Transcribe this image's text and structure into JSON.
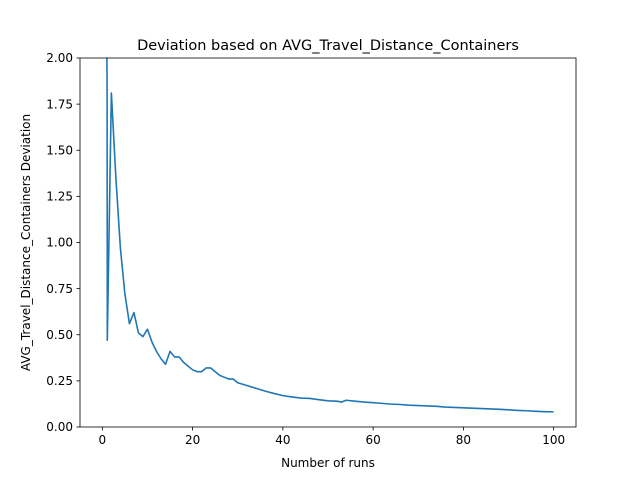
{
  "chart_data": {
    "type": "line",
    "title": "Deviation based on AVG_Travel_Distance_Containers",
    "xlabel": "Number of runs",
    "ylabel": "AVG_Travel_Distance_Containers Deviation",
    "xlim": [
      -4.95,
      104.95
    ],
    "ylim": [
      0,
      2.0
    ],
    "x_ticks": [
      0,
      20,
      40,
      60,
      80,
      100
    ],
    "x_tick_labels": [
      "0",
      "20",
      "40",
      "60",
      "80",
      "100"
    ],
    "y_ticks": [
      0,
      0.25,
      0.5,
      0.75,
      1.0,
      1.25,
      1.5,
      1.75,
      2.0
    ],
    "y_tick_labels": [
      "0.00",
      "0.25",
      "0.50",
      "0.75",
      "1.00",
      "1.25",
      "1.50",
      "1.75",
      "2.00"
    ],
    "grid": false,
    "color": "#1f77b4",
    "series": [
      {
        "x": [
          1,
          1.05,
          1.1,
          2,
          3,
          4,
          5,
          6,
          7,
          8,
          9,
          10,
          11,
          12,
          13,
          14,
          15,
          16,
          17,
          18,
          19,
          20,
          21,
          22,
          23,
          24,
          25,
          26,
          27,
          28,
          29,
          30,
          32,
          34,
          36,
          38,
          40,
          42,
          44,
          46,
          48,
          50,
          52,
          53,
          54,
          56,
          58,
          60,
          62,
          64,
          66,
          68,
          70,
          72,
          74,
          76,
          78,
          80,
          82,
          84,
          86,
          88,
          90,
          92,
          94,
          96,
          98,
          100
        ],
        "y": [
          2.0,
          1.9,
          0.47,
          1.81,
          1.35,
          0.97,
          0.72,
          0.56,
          0.62,
          0.51,
          0.49,
          0.53,
          0.46,
          0.41,
          0.37,
          0.34,
          0.41,
          0.38,
          0.38,
          0.35,
          0.33,
          0.31,
          0.3,
          0.3,
          0.32,
          0.32,
          0.3,
          0.28,
          0.27,
          0.26,
          0.26,
          0.24,
          0.225,
          0.21,
          0.195,
          0.182,
          0.17,
          0.163,
          0.157,
          0.155,
          0.148,
          0.142,
          0.14,
          0.135,
          0.145,
          0.14,
          0.135,
          0.132,
          0.128,
          0.124,
          0.122,
          0.118,
          0.116,
          0.114,
          0.112,
          0.108,
          0.106,
          0.104,
          0.102,
          0.1,
          0.098,
          0.096,
          0.093,
          0.09,
          0.088,
          0.085,
          0.083,
          0.082
        ]
      }
    ]
  }
}
